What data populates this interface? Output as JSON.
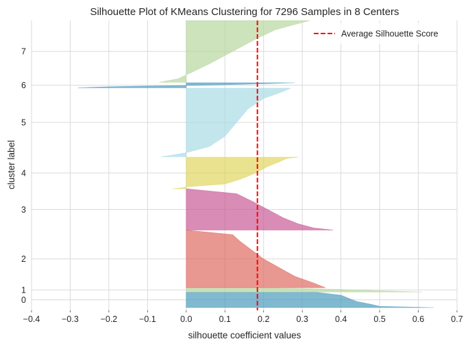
{
  "chart_data": {
    "type": "area",
    "title": "Silhouette Plot of KMeans Clustering for 7296 Samples in 8 Centers",
    "xlabel": "silhouette coefficient values",
    "ylabel": "cluster label",
    "xlim": [
      -0.4,
      0.7
    ],
    "ylim": [
      -70,
      7366
    ],
    "xticks": [
      -0.4,
      -0.3,
      -0.2,
      -0.1,
      0.0,
      0.1,
      0.2,
      0.3,
      0.4,
      0.5,
      0.6,
      0.7
    ],
    "xtick_labels": [
      "−0.4",
      "−0.3",
      "−0.2",
      "−0.1",
      "0.0",
      "0.1",
      "0.2",
      "0.3",
      "0.4",
      "0.5",
      "0.6",
      "0.7"
    ],
    "grid": true,
    "legend_position": "top-right",
    "average_silhouette_score": 0.184,
    "average_line": {
      "label": "Average Silhouette Score",
      "color": "#ff0000",
      "style": "dashed"
    },
    "clusters": [
      {
        "label": "0",
        "color": "#4c9bbd",
        "y_start": 0,
        "y_end": 400,
        "profile": [
          [
            0.0,
            0.64
          ],
          [
            0.08,
            0.5
          ],
          [
            0.2,
            0.48
          ],
          [
            0.4,
            0.44
          ],
          [
            0.6,
            0.42
          ],
          [
            0.8,
            0.4
          ],
          [
            1.0,
            0.33
          ]
        ]
      },
      {
        "label": "1",
        "color": "#b8d7a0",
        "y_start": 400,
        "y_end": 510,
        "profile": [
          [
            0.0,
            0.61
          ],
          [
            0.3,
            0.5
          ],
          [
            0.6,
            0.4
          ],
          [
            1.0,
            0.2
          ]
        ]
      },
      {
        "label": "2",
        "color": "#e06b63",
        "y_start": 510,
        "y_end": 1990,
        "profile": [
          [
            0.0,
            0.36
          ],
          [
            0.08,
            0.33
          ],
          [
            0.2,
            0.28
          ],
          [
            0.35,
            0.24
          ],
          [
            0.5,
            0.2
          ],
          [
            0.65,
            0.17
          ],
          [
            0.8,
            0.14
          ],
          [
            0.92,
            0.12
          ],
          [
            1.0,
            0.0
          ]
        ]
      },
      {
        "label": "3",
        "color": "#c95b96",
        "y_start": 1990,
        "y_end": 3050,
        "profile": [
          [
            0.0,
            0.38
          ],
          [
            0.05,
            0.33
          ],
          [
            0.15,
            0.29
          ],
          [
            0.3,
            0.25
          ],
          [
            0.5,
            0.21
          ],
          [
            0.7,
            0.17
          ],
          [
            0.88,
            0.13
          ],
          [
            1.0,
            0.0
          ]
        ]
      },
      {
        "label": "4",
        "color": "#e0d660",
        "y_start": 3050,
        "y_end": 3860,
        "profile": [
          [
            0.0,
            -0.035
          ],
          [
            0.03,
            -0.01
          ],
          [
            0.06,
            0.0
          ],
          [
            0.15,
            0.1
          ],
          [
            0.3,
            0.14
          ],
          [
            0.5,
            0.18
          ],
          [
            0.7,
            0.21
          ],
          [
            0.85,
            0.24
          ],
          [
            0.96,
            0.26
          ],
          [
            1.0,
            0.29
          ]
        ]
      },
      {
        "label": "5",
        "color": "#a9dbe6",
        "y_start": 3870,
        "y_end": 5630,
        "profile": [
          [
            0.0,
            -0.065
          ],
          [
            0.03,
            -0.03
          ],
          [
            0.06,
            0.0
          ],
          [
            0.15,
            0.06
          ],
          [
            0.3,
            0.1
          ],
          [
            0.5,
            0.13
          ],
          [
            0.7,
            0.16
          ],
          [
            0.85,
            0.2
          ],
          [
            0.95,
            0.25
          ],
          [
            1.0,
            0.27
          ]
        ]
      },
      {
        "label": "6",
        "color": "#4c9bbd",
        "y_start": 5640,
        "y_end": 5770,
        "profile": [
          [
            0.0,
            -0.28
          ],
          [
            0.2,
            -0.2
          ],
          [
            0.35,
            -0.1
          ],
          [
            0.45,
            0.0
          ],
          [
            0.6,
            0.1
          ],
          [
            0.8,
            0.2
          ],
          [
            1.0,
            0.28
          ]
        ]
      },
      {
        "label": "7",
        "color": "#b8d7a0",
        "y_start": 5780,
        "y_end": 7366,
        "profile": [
          [
            0.0,
            -0.07
          ],
          [
            0.06,
            -0.02
          ],
          [
            0.12,
            0.0
          ],
          [
            0.3,
            0.06
          ],
          [
            0.5,
            0.12
          ],
          [
            0.7,
            0.18
          ],
          [
            0.85,
            0.23
          ],
          [
            0.95,
            0.29
          ],
          [
            1.0,
            0.32
          ]
        ]
      }
    ]
  }
}
